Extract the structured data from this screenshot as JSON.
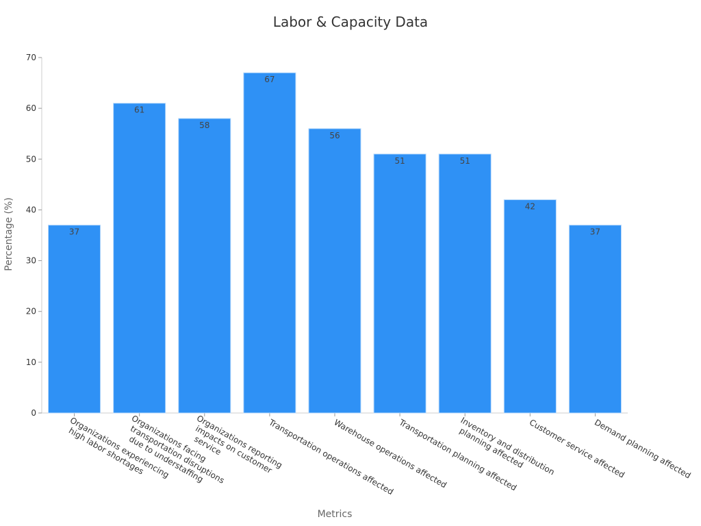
{
  "chart_data": {
    "type": "bar",
    "title": "Labor & Capacity Data",
    "xlabel": "Metrics",
    "ylabel": "Percentage (%)",
    "ylim": [
      0,
      70
    ],
    "yticks": [
      0,
      10,
      20,
      30,
      40,
      50,
      60,
      70
    ],
    "grid": false,
    "bar_color": "#2f91f5",
    "categories": [
      "Organizations experiencing high labor shortages",
      "Organizations facing transportation disruptions due to understaffing",
      "Organizations reporting impacts on customer service",
      "Transportation operations affected",
      "Warehouse operations affected",
      "Transportation planning affected",
      "Inventory and distribution planning affected",
      "Customer service affected",
      "Demand planning affected"
    ],
    "values": [
      37,
      61,
      58,
      67,
      56,
      51,
      51,
      42,
      37
    ]
  }
}
